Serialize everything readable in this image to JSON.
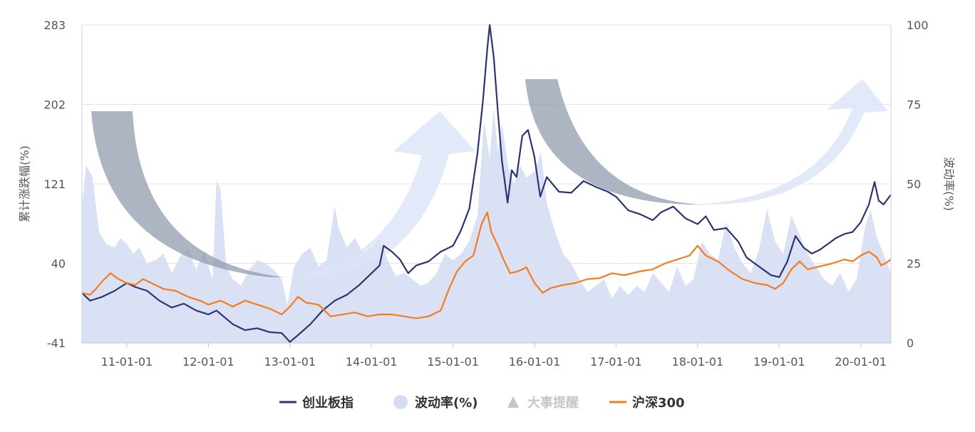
{
  "chart_data": {
    "type": "line",
    "left_axis": {
      "label": "累计涨跌幅(%)",
      "ticks": [
        "283",
        "202",
        "121",
        "40",
        "-41"
      ],
      "range": [
        -41,
        283
      ]
    },
    "right_axis": {
      "label": "波动率(%)",
      "ticks": [
        "100",
        "75",
        "50",
        "25",
        "0"
      ],
      "range": [
        0,
        100
      ]
    },
    "x_ticks": [
      "11-01-01",
      "12-01-01",
      "13-01-01",
      "14-01-01",
      "15-01-01",
      "16-01-01",
      "17-01-01",
      "18-01-01",
      "19-01-01",
      "20-01-01"
    ],
    "x_range": [
      2010.45,
      2020.37
    ],
    "legend": [
      {
        "label": "创业板指",
        "kind": "line",
        "color": "#2b3670"
      },
      {
        "label": "波动率(%)",
        "kind": "circle",
        "color": "#d5dcf3"
      },
      {
        "label": "大事提醒",
        "kind": "triangle",
        "color": "#c6c6c6"
      },
      {
        "label": "沪深300",
        "kind": "line",
        "color": "#f47b20"
      }
    ],
    "series": [
      {
        "name": "创业板指",
        "axis": "left",
        "color": "#2b3670",
        "points": [
          [
            2010.45,
            10
          ],
          [
            2010.55,
            2
          ],
          [
            2010.7,
            6
          ],
          [
            2010.85,
            12
          ],
          [
            2011.0,
            20
          ],
          [
            2011.1,
            16
          ],
          [
            2011.25,
            12
          ],
          [
            2011.4,
            2
          ],
          [
            2011.55,
            -5
          ],
          [
            2011.7,
            -1
          ],
          [
            2011.85,
            -8
          ],
          [
            2012.0,
            -12
          ],
          [
            2012.1,
            -8
          ],
          [
            2012.2,
            -15
          ],
          [
            2012.3,
            -22
          ],
          [
            2012.45,
            -28
          ],
          [
            2012.6,
            -26
          ],
          [
            2012.75,
            -30
          ],
          [
            2012.9,
            -31
          ],
          [
            2013.0,
            -40
          ],
          [
            2013.1,
            -33
          ],
          [
            2013.25,
            -22
          ],
          [
            2013.4,
            -8
          ],
          [
            2013.55,
            2
          ],
          [
            2013.7,
            8
          ],
          [
            2013.85,
            18
          ],
          [
            2014.0,
            30
          ],
          [
            2014.1,
            38
          ],
          [
            2014.15,
            58
          ],
          [
            2014.25,
            52
          ],
          [
            2014.35,
            44
          ],
          [
            2014.45,
            30
          ],
          [
            2014.55,
            38
          ],
          [
            2014.7,
            42
          ],
          [
            2014.85,
            52
          ],
          [
            2015.0,
            58
          ],
          [
            2015.1,
            74
          ],
          [
            2015.2,
            96
          ],
          [
            2015.3,
            152
          ],
          [
            2015.37,
            208
          ],
          [
            2015.42,
            258
          ],
          [
            2015.45,
            283
          ],
          [
            2015.5,
            250
          ],
          [
            2015.55,
            195
          ],
          [
            2015.6,
            145
          ],
          [
            2015.67,
            102
          ],
          [
            2015.72,
            135
          ],
          [
            2015.78,
            128
          ],
          [
            2015.85,
            170
          ],
          [
            2015.92,
            176
          ],
          [
            2016.0,
            148
          ],
          [
            2016.07,
            108
          ],
          [
            2016.15,
            128
          ],
          [
            2016.3,
            113
          ],
          [
            2016.45,
            112
          ],
          [
            2016.6,
            124
          ],
          [
            2016.75,
            118
          ],
          [
            2016.9,
            113
          ],
          [
            2017.0,
            108
          ],
          [
            2017.15,
            94
          ],
          [
            2017.3,
            90
          ],
          [
            2017.45,
            84
          ],
          [
            2017.55,
            92
          ],
          [
            2017.7,
            98
          ],
          [
            2017.85,
            86
          ],
          [
            2018.0,
            80
          ],
          [
            2018.1,
            88
          ],
          [
            2018.2,
            74
          ],
          [
            2018.35,
            76
          ],
          [
            2018.5,
            62
          ],
          [
            2018.6,
            46
          ],
          [
            2018.7,
            40
          ],
          [
            2018.8,
            34
          ],
          [
            2018.9,
            28
          ],
          [
            2019.0,
            26
          ],
          [
            2019.1,
            42
          ],
          [
            2019.2,
            68
          ],
          [
            2019.3,
            56
          ],
          [
            2019.4,
            50
          ],
          [
            2019.5,
            54
          ],
          [
            2019.6,
            60
          ],
          [
            2019.7,
            66
          ],
          [
            2019.8,
            70
          ],
          [
            2019.9,
            72
          ],
          [
            2020.0,
            82
          ],
          [
            2020.1,
            100
          ],
          [
            2020.17,
            123
          ],
          [
            2020.22,
            104
          ],
          [
            2020.28,
            100
          ],
          [
            2020.37,
            110
          ]
        ]
      },
      {
        "name": "沪深300",
        "axis": "left",
        "color": "#f47b20",
        "points": [
          [
            2010.45,
            10
          ],
          [
            2010.55,
            8
          ],
          [
            2010.62,
            14
          ],
          [
            2010.7,
            22
          ],
          [
            2010.8,
            30
          ],
          [
            2010.9,
            24
          ],
          [
            2011.0,
            20
          ],
          [
            2011.1,
            18
          ],
          [
            2011.2,
            24
          ],
          [
            2011.3,
            20
          ],
          [
            2011.45,
            14
          ],
          [
            2011.6,
            12
          ],
          [
            2011.75,
            6
          ],
          [
            2011.9,
            2
          ],
          [
            2012.0,
            -2
          ],
          [
            2012.15,
            2
          ],
          [
            2012.3,
            -4
          ],
          [
            2012.45,
            2
          ],
          [
            2012.6,
            -2
          ],
          [
            2012.75,
            -6
          ],
          [
            2012.9,
            -12
          ],
          [
            2013.0,
            -4
          ],
          [
            2013.1,
            6
          ],
          [
            2013.2,
            0
          ],
          [
            2013.35,
            -2
          ],
          [
            2013.5,
            -14
          ],
          [
            2013.65,
            -12
          ],
          [
            2013.8,
            -10
          ],
          [
            2013.95,
            -14
          ],
          [
            2014.1,
            -12
          ],
          [
            2014.25,
            -12
          ],
          [
            2014.4,
            -14
          ],
          [
            2014.55,
            -16
          ],
          [
            2014.7,
            -14
          ],
          [
            2014.85,
            -8
          ],
          [
            2014.95,
            14
          ],
          [
            2015.05,
            32
          ],
          [
            2015.15,
            42
          ],
          [
            2015.25,
            48
          ],
          [
            2015.35,
            80
          ],
          [
            2015.42,
            92
          ],
          [
            2015.47,
            72
          ],
          [
            2015.55,
            58
          ],
          [
            2015.62,
            44
          ],
          [
            2015.7,
            30
          ],
          [
            2015.8,
            32
          ],
          [
            2015.9,
            36
          ],
          [
            2016.0,
            20
          ],
          [
            2016.1,
            10
          ],
          [
            2016.2,
            15
          ],
          [
            2016.35,
            18
          ],
          [
            2016.5,
            20
          ],
          [
            2016.65,
            24
          ],
          [
            2016.8,
            25
          ],
          [
            2016.95,
            30
          ],
          [
            2017.1,
            28
          ],
          [
            2017.3,
            32
          ],
          [
            2017.45,
            34
          ],
          [
            2017.6,
            40
          ],
          [
            2017.75,
            44
          ],
          [
            2017.9,
            48
          ],
          [
            2018.0,
            58
          ],
          [
            2018.1,
            48
          ],
          [
            2018.25,
            42
          ],
          [
            2018.4,
            32
          ],
          [
            2018.55,
            24
          ],
          [
            2018.7,
            20
          ],
          [
            2018.85,
            18
          ],
          [
            2018.95,
            14
          ],
          [
            2019.05,
            20
          ],
          [
            2019.15,
            34
          ],
          [
            2019.25,
            42
          ],
          [
            2019.35,
            34
          ],
          [
            2019.45,
            36
          ],
          [
            2019.55,
            38
          ],
          [
            2019.65,
            40
          ],
          [
            2019.8,
            44
          ],
          [
            2019.9,
            42
          ],
          [
            2020.0,
            48
          ],
          [
            2020.1,
            52
          ],
          [
            2020.2,
            46
          ],
          [
            2020.25,
            38
          ],
          [
            2020.3,
            40
          ],
          [
            2020.37,
            44
          ]
        ]
      },
      {
        "name": "波动率(%)",
        "axis": "right",
        "type": "area",
        "color": "#d5dcf3",
        "points": [
          [
            2010.45,
            42
          ],
          [
            2010.5,
            56
          ],
          [
            2010.58,
            52
          ],
          [
            2010.66,
            35
          ],
          [
            2010.75,
            31
          ],
          [
            2010.85,
            30
          ],
          [
            2010.92,
            33
          ],
          [
            2011.0,
            31
          ],
          [
            2011.08,
            28
          ],
          [
            2011.15,
            30
          ],
          [
            2011.25,
            25
          ],
          [
            2011.35,
            26
          ],
          [
            2011.45,
            28
          ],
          [
            2011.55,
            22
          ],
          [
            2011.65,
            27
          ],
          [
            2011.75,
            30
          ],
          [
            2011.85,
            23
          ],
          [
            2011.95,
            29
          ],
          [
            2012.05,
            20
          ],
          [
            2012.1,
            51
          ],
          [
            2012.15,
            48
          ],
          [
            2012.22,
            24
          ],
          [
            2012.3,
            20
          ],
          [
            2012.4,
            18
          ],
          [
            2012.5,
            23
          ],
          [
            2012.6,
            26
          ],
          [
            2012.7,
            25
          ],
          [
            2012.8,
            23
          ],
          [
            2012.9,
            20
          ],
          [
            2012.97,
            12
          ],
          [
            2013.05,
            24
          ],
          [
            2013.15,
            28
          ],
          [
            2013.25,
            30
          ],
          [
            2013.35,
            24
          ],
          [
            2013.45,
            26
          ],
          [
            2013.55,
            43
          ],
          [
            2013.6,
            36
          ],
          [
            2013.7,
            30
          ],
          [
            2013.8,
            33
          ],
          [
            2013.9,
            28
          ],
          [
            2014.0,
            30
          ],
          [
            2014.1,
            33
          ],
          [
            2014.2,
            26
          ],
          [
            2014.3,
            21
          ],
          [
            2014.4,
            22
          ],
          [
            2014.5,
            20
          ],
          [
            2014.6,
            18
          ],
          [
            2014.7,
            19
          ],
          [
            2014.8,
            22
          ],
          [
            2014.9,
            28
          ],
          [
            2015.0,
            26
          ],
          [
            2015.1,
            28
          ],
          [
            2015.2,
            32
          ],
          [
            2015.3,
            40
          ],
          [
            2015.38,
            70
          ],
          [
            2015.45,
            58
          ],
          [
            2015.5,
            74
          ],
          [
            2015.55,
            60
          ],
          [
            2015.6,
            69
          ],
          [
            2015.68,
            55
          ],
          [
            2015.75,
            50
          ],
          [
            2015.82,
            56
          ],
          [
            2015.9,
            52
          ],
          [
            2016.0,
            54
          ],
          [
            2016.08,
            60
          ],
          [
            2016.15,
            44
          ],
          [
            2016.25,
            35
          ],
          [
            2016.35,
            28
          ],
          [
            2016.45,
            25
          ],
          [
            2016.55,
            20
          ],
          [
            2016.65,
            16
          ],
          [
            2016.75,
            18
          ],
          [
            2016.85,
            20
          ],
          [
            2016.95,
            14
          ],
          [
            2017.05,
            18
          ],
          [
            2017.15,
            15
          ],
          [
            2017.25,
            18
          ],
          [
            2017.35,
            16
          ],
          [
            2017.45,
            22
          ],
          [
            2017.55,
            19
          ],
          [
            2017.65,
            16
          ],
          [
            2017.75,
            24
          ],
          [
            2017.85,
            18
          ],
          [
            2017.95,
            20
          ],
          [
            2018.05,
            32
          ],
          [
            2018.15,
            28
          ],
          [
            2018.25,
            26
          ],
          [
            2018.35,
            38
          ],
          [
            2018.45,
            30
          ],
          [
            2018.55,
            25
          ],
          [
            2018.65,
            22
          ],
          [
            2018.75,
            29
          ],
          [
            2018.85,
            42
          ],
          [
            2018.95,
            32
          ],
          [
            2019.05,
            28
          ],
          [
            2019.15,
            40
          ],
          [
            2019.25,
            34
          ],
          [
            2019.35,
            28
          ],
          [
            2019.45,
            24
          ],
          [
            2019.55,
            20
          ],
          [
            2019.65,
            18
          ],
          [
            2019.75,
            22
          ],
          [
            2019.85,
            16
          ],
          [
            2019.95,
            20
          ],
          [
            2020.05,
            36
          ],
          [
            2020.12,
            42
          ],
          [
            2020.2,
            33
          ],
          [
            2020.28,
            28
          ],
          [
            2020.37,
            22
          ]
        ]
      }
    ]
  }
}
